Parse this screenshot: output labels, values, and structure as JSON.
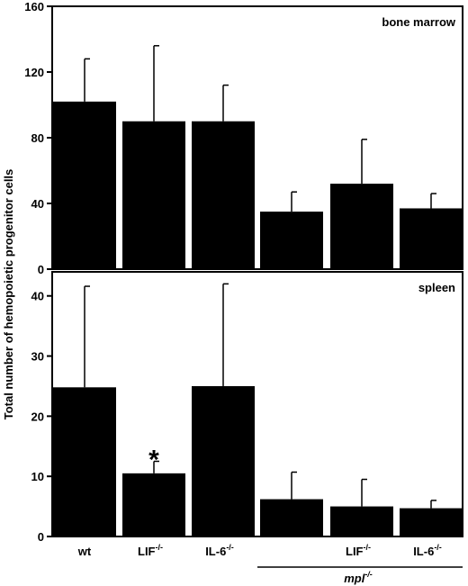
{
  "ylabel": "Total number of hemopoietic progenitor cells",
  "categories": [
    {
      "base": "wt",
      "sup": ""
    },
    {
      "base": "LIF",
      "sup": "-/-"
    },
    {
      "base": "IL-6",
      "sup": "-/-"
    },
    {
      "base": "",
      "sup": ""
    },
    {
      "base": "LIF",
      "sup": "-/-"
    },
    {
      "base": "IL-6",
      "sup": "-/-"
    }
  ],
  "group_label": {
    "base": "mpl",
    "sup": "-/-"
  },
  "chart_data": [
    {
      "type": "bar",
      "title": "bone marrow",
      "ylim": [
        0,
        160
      ],
      "yticks": [
        0,
        40,
        80,
        120,
        160
      ],
      "values": [
        102,
        90,
        90,
        35,
        52,
        37
      ],
      "errors": [
        26,
        46,
        22,
        12,
        27,
        9
      ],
      "significance": [
        "",
        "",
        "",
        "",
        "",
        ""
      ]
    },
    {
      "type": "bar",
      "title": "spleen",
      "ylim": [
        0,
        44
      ],
      "yticks": [
        0,
        10,
        20,
        30,
        40
      ],
      "values": [
        24.8,
        10.5,
        25,
        6.2,
        5,
        4.7
      ],
      "errors": [
        16.8,
        2,
        17,
        4.5,
        4.5,
        1.3
      ],
      "significance": [
        "",
        "*",
        "",
        "",
        "",
        ""
      ]
    }
  ]
}
